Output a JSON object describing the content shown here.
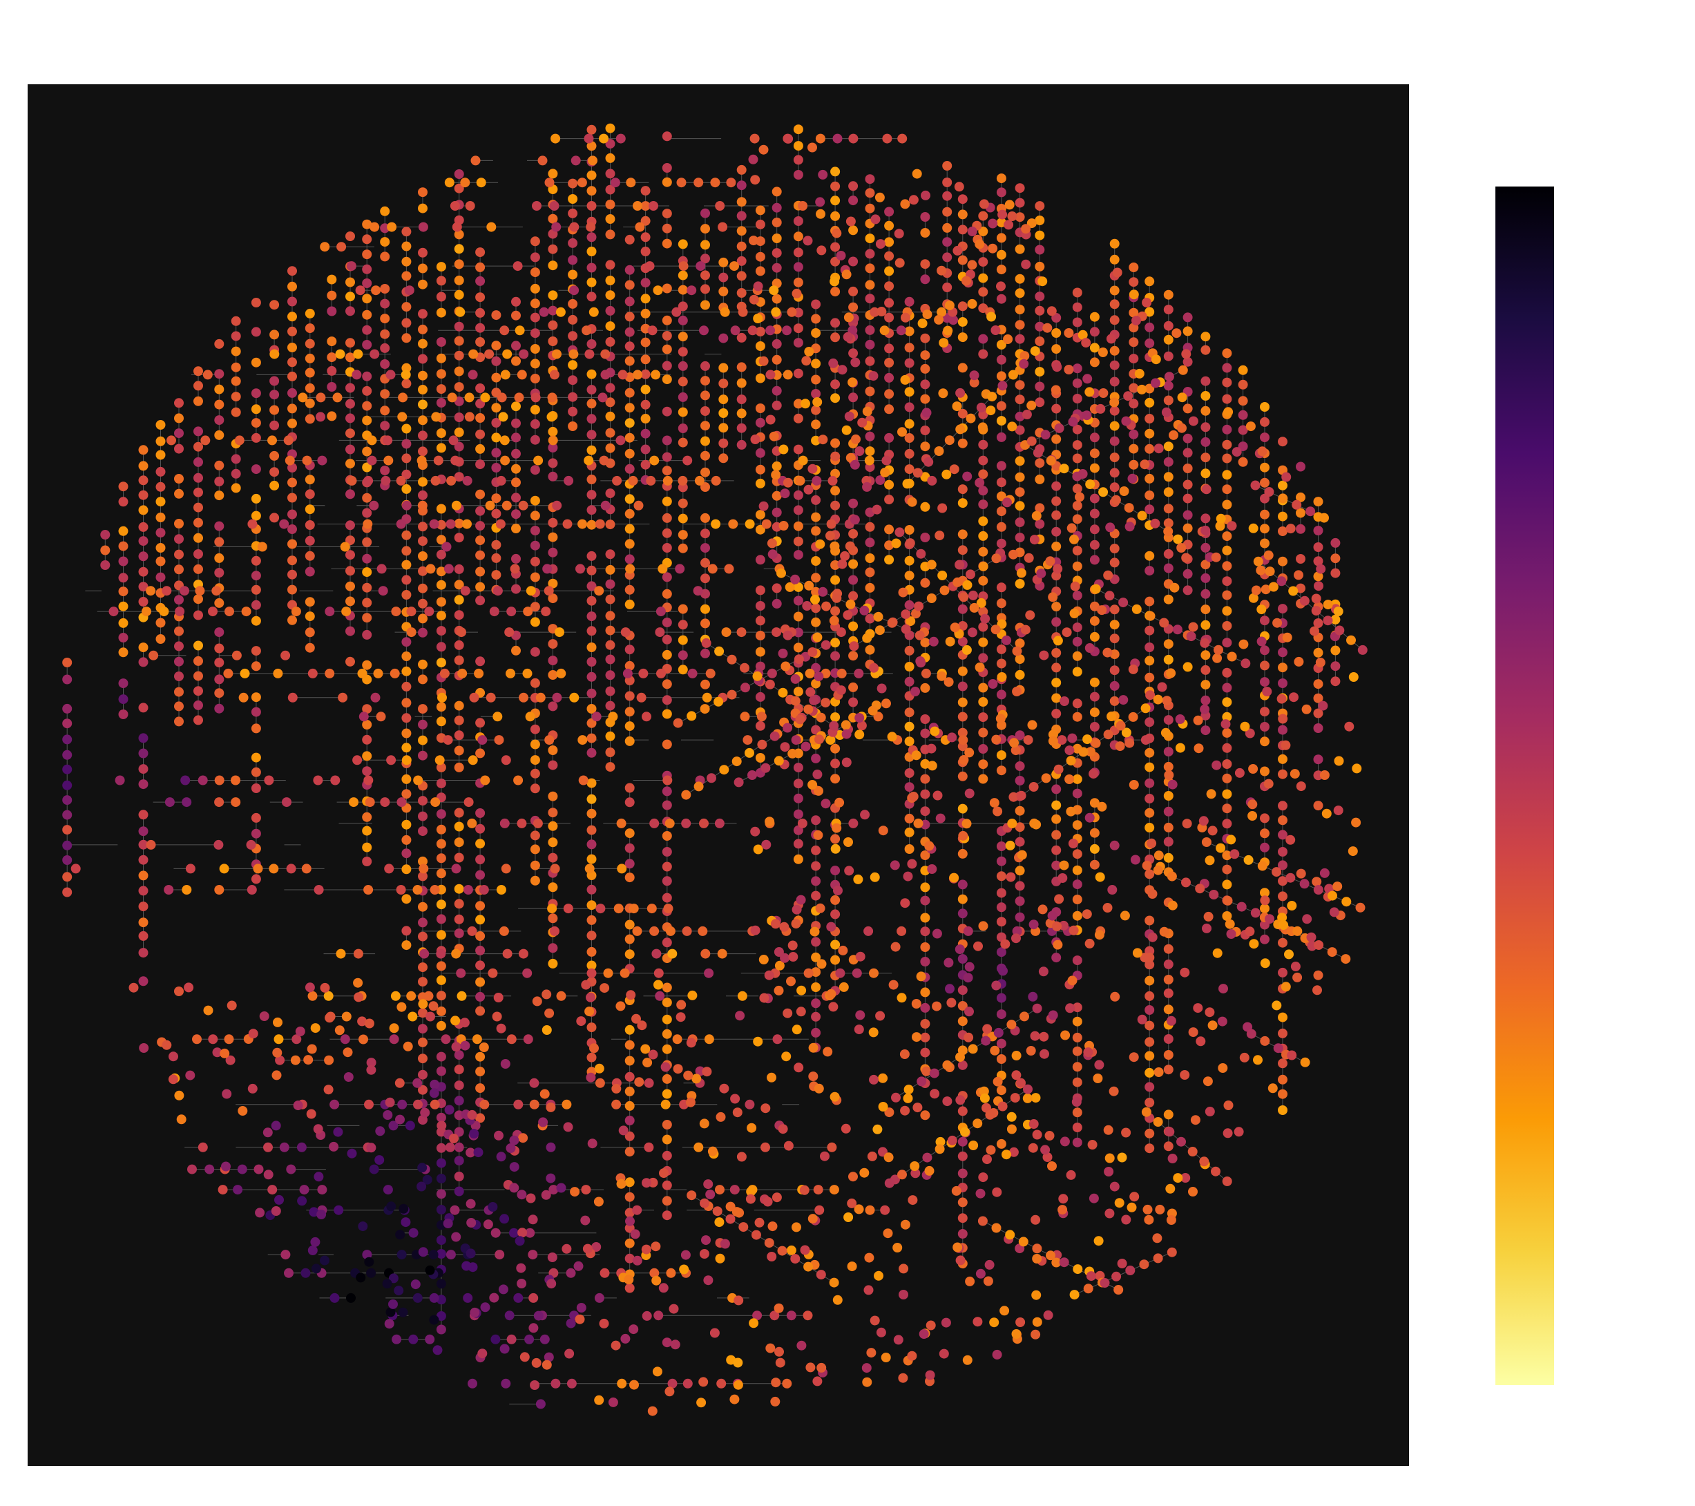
{
  "map": {
    "background_color": "#111111",
    "edge_color": "#555555",
    "node_color_scale": "inferno",
    "layout_shape": "circle",
    "title": ""
  },
  "colorbar": {
    "colormap": "inferno",
    "direction": "dark-top-to-light-bottom",
    "label": "",
    "tick_labels": []
  },
  "colors": {
    "scale_stops": [
      "#000004",
      "#1b0c41",
      "#4a0c6b",
      "#781c6d",
      "#a52c60",
      "#cf4446",
      "#ed6925",
      "#fb9b06",
      "#f7d13d",
      "#fcffa4"
    ]
  }
}
